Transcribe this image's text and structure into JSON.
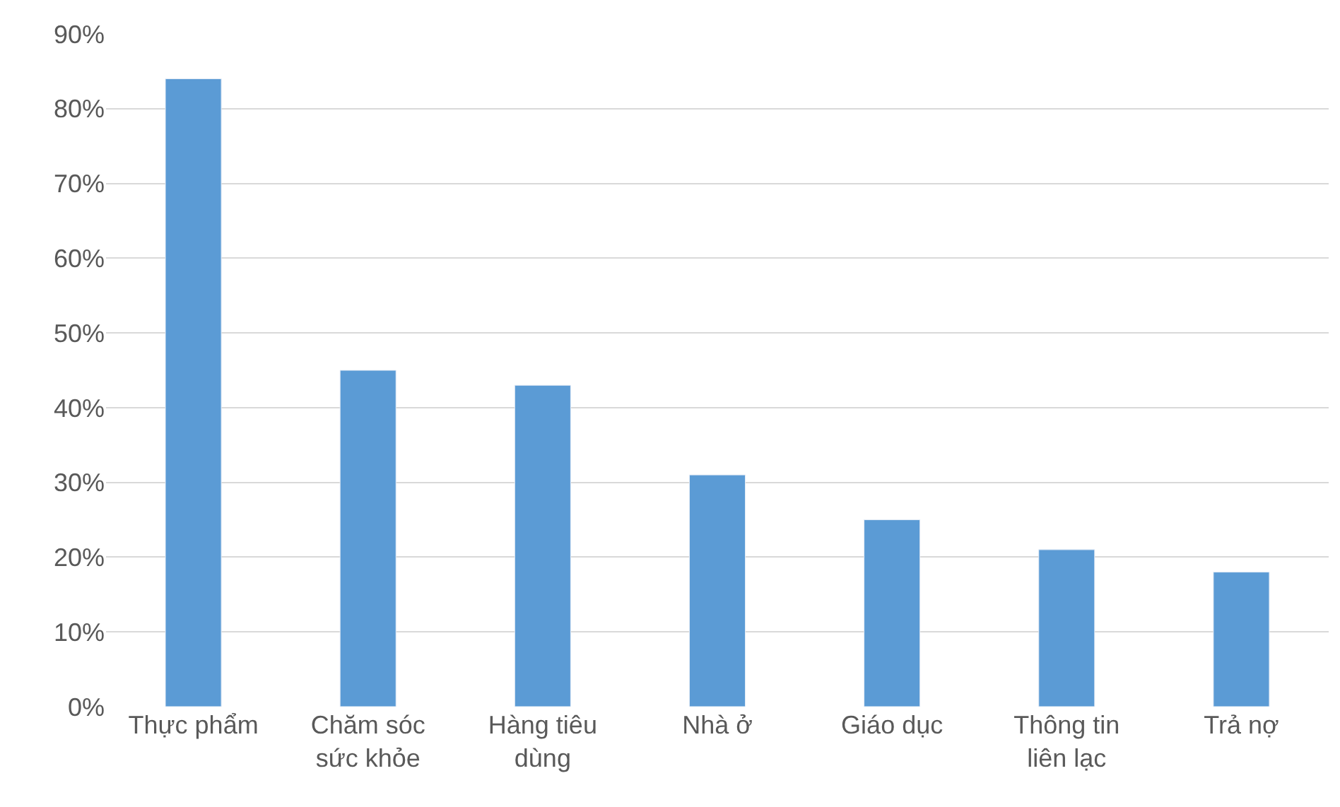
{
  "chart_data": {
    "type": "bar",
    "categories": [
      "Thực phẩm",
      "Chăm sóc sức khỏe",
      "Hàng tiêu dùng",
      "Nhà ở",
      "Giáo dục",
      "Thông tin liên lạc",
      "Trả nợ"
    ],
    "values": [
      84,
      45,
      43,
      31,
      25,
      21,
      18
    ],
    "color": "#5b9bd5",
    "ylim": [
      0,
      90
    ],
    "yticks": [
      {
        "value": 0,
        "label": "0%"
      },
      {
        "value": 10,
        "label": "10%"
      },
      {
        "value": 20,
        "label": "20%"
      },
      {
        "value": 30,
        "label": "30%"
      },
      {
        "value": 40,
        "label": "40%"
      },
      {
        "value": 50,
        "label": "50%"
      },
      {
        "value": 60,
        "label": "60%"
      },
      {
        "value": 70,
        "label": "70%"
      },
      {
        "value": 80,
        "label": "80%"
      },
      {
        "value": 90,
        "label": "90%"
      }
    ],
    "grid": "y"
  }
}
